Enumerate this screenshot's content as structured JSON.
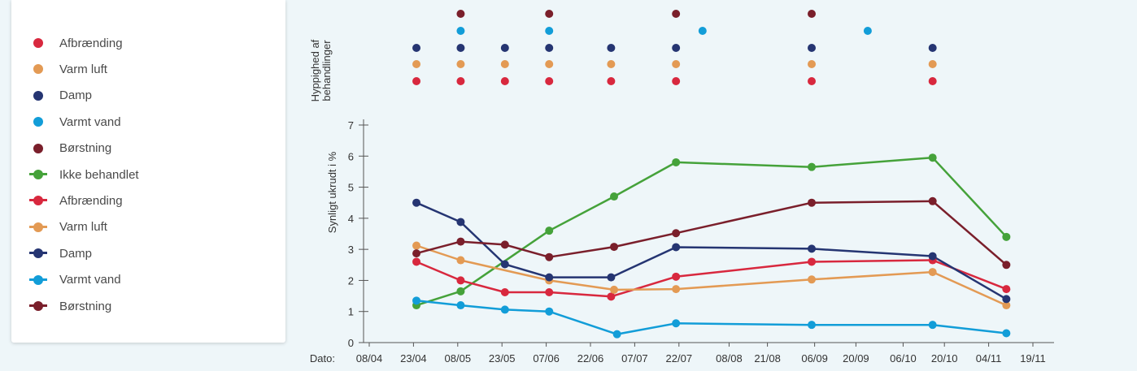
{
  "legend": [
    {
      "label": "Afbrænding",
      "kind": "dot",
      "color": "#d8283e"
    },
    {
      "label": "Varm luft",
      "kind": "dot",
      "color": "#e39a54"
    },
    {
      "label": "Damp",
      "kind": "dot",
      "color": "#253572"
    },
    {
      "label": "Varmt vand",
      "kind": "dot",
      "color": "#129dd8"
    },
    {
      "label": "Børstning",
      "kind": "dot",
      "color": "#7a1f2b"
    },
    {
      "label": "Ikke behandlet",
      "kind": "line",
      "color": "#45a23a"
    },
    {
      "label": "Afbrænding",
      "kind": "line",
      "color": "#d8283e"
    },
    {
      "label": "Varm luft",
      "kind": "line",
      "color": "#e39a54"
    },
    {
      "label": "Damp",
      "kind": "line",
      "color": "#253572"
    },
    {
      "label": "Varmt vand",
      "kind": "line",
      "color": "#129dd8"
    },
    {
      "label": "Børstning",
      "kind": "line",
      "color": "#7a1f2b"
    }
  ],
  "chart_data": {
    "type": "line",
    "ylabel": "Synligt ukrudt i %",
    "frequency_label": "Hyppighed af behandlinger",
    "xlabel": "Dato:",
    "x_ticks": [
      "08/04",
      "23/04",
      "08/05",
      "23/05",
      "07/06",
      "22/06",
      "07/07",
      "22/07",
      "08/08",
      "21/08",
      "06/09",
      "20/09",
      "06/10",
      "20/10",
      "04/11",
      "19/11"
    ],
    "x_tick_dates": [
      "2000-04-08",
      "2000-04-23",
      "2000-05-08",
      "2000-05-23",
      "2000-06-07",
      "2000-06-22",
      "2000-07-07",
      "2000-07-22",
      "2000-08-08",
      "2000-08-21",
      "2000-09-06",
      "2000-09-20",
      "2000-10-06",
      "2000-10-20",
      "2000-11-04",
      "2000-11-19"
    ],
    "y_ticks": [
      0,
      1,
      2,
      3,
      4,
      5,
      6,
      7
    ],
    "ylim": [
      0,
      7
    ],
    "series": [
      {
        "name": "Ikke behandlet",
        "color": "#45a23a",
        "points": [
          {
            "date": "2000-04-24",
            "y": 1.2
          },
          {
            "date": "2000-05-09",
            "y": 1.65
          },
          {
            "date": "2000-06-08",
            "y": 3.6
          },
          {
            "date": "2000-06-30",
            "y": 4.7
          },
          {
            "date": "2000-07-21",
            "y": 5.8
          },
          {
            "date": "2000-09-05",
            "y": 5.65
          },
          {
            "date": "2000-10-16",
            "y": 5.95
          },
          {
            "date": "2000-11-10",
            "y": 3.4
          }
        ]
      },
      {
        "name": "Afbrænding",
        "color": "#d8283e",
        "points": [
          {
            "date": "2000-04-24",
            "y": 2.6
          },
          {
            "date": "2000-05-09",
            "y": 2.0
          },
          {
            "date": "2000-05-24",
            "y": 1.62
          },
          {
            "date": "2000-06-08",
            "y": 1.62
          },
          {
            "date": "2000-06-29",
            "y": 1.48
          },
          {
            "date": "2000-07-21",
            "y": 2.12
          },
          {
            "date": "2000-09-05",
            "y": 2.6
          },
          {
            "date": "2000-10-16",
            "y": 2.65
          },
          {
            "date": "2000-11-10",
            "y": 1.72
          }
        ]
      },
      {
        "name": "Varm luft",
        "color": "#e39a54",
        "points": [
          {
            "date": "2000-04-24",
            "y": 3.12
          },
          {
            "date": "2000-05-09",
            "y": 2.65
          },
          {
            "date": "2000-06-08",
            "y": 2.0
          },
          {
            "date": "2000-06-30",
            "y": 1.7
          },
          {
            "date": "2000-07-21",
            "y": 1.72
          },
          {
            "date": "2000-09-05",
            "y": 2.03
          },
          {
            "date": "2000-10-16",
            "y": 2.27
          },
          {
            "date": "2000-11-10",
            "y": 1.2
          }
        ]
      },
      {
        "name": "Damp",
        "color": "#253572",
        "points": [
          {
            "date": "2000-04-24",
            "y": 4.5
          },
          {
            "date": "2000-05-09",
            "y": 3.88
          },
          {
            "date": "2000-05-24",
            "y": 2.52
          },
          {
            "date": "2000-06-08",
            "y": 2.1
          },
          {
            "date": "2000-06-29",
            "y": 2.1
          },
          {
            "date": "2000-07-21",
            "y": 3.07
          },
          {
            "date": "2000-09-05",
            "y": 3.02
          },
          {
            "date": "2000-10-16",
            "y": 2.78
          },
          {
            "date": "2000-11-10",
            "y": 1.4
          }
        ]
      },
      {
        "name": "Varmt vand",
        "color": "#129dd8",
        "points": [
          {
            "date": "2000-04-24",
            "y": 1.35
          },
          {
            "date": "2000-05-09",
            "y": 1.2
          },
          {
            "date": "2000-05-24",
            "y": 1.06
          },
          {
            "date": "2000-06-08",
            "y": 1.0
          },
          {
            "date": "2000-07-01",
            "y": 0.27
          },
          {
            "date": "2000-07-21",
            "y": 0.62
          },
          {
            "date": "2000-09-05",
            "y": 0.57
          },
          {
            "date": "2000-10-16",
            "y": 0.57
          },
          {
            "date": "2000-11-10",
            "y": 0.3
          }
        ]
      },
      {
        "name": "Børstning",
        "color": "#7a1f2b",
        "points": [
          {
            "date": "2000-04-24",
            "y": 2.87
          },
          {
            "date": "2000-05-09",
            "y": 3.25
          },
          {
            "date": "2000-05-24",
            "y": 3.15
          },
          {
            "date": "2000-06-08",
            "y": 2.75
          },
          {
            "date": "2000-06-30",
            "y": 3.08
          },
          {
            "date": "2000-07-21",
            "y": 3.52
          },
          {
            "date": "2000-09-05",
            "y": 4.5
          },
          {
            "date": "2000-10-16",
            "y": 4.55
          },
          {
            "date": "2000-11-10",
            "y": 2.5
          }
        ]
      }
    ],
    "treatment_frequency": [
      {
        "name": "Børstning",
        "color": "#7a1f2b",
        "dates": [
          "2000-05-09",
          "2000-06-08",
          "2000-07-21",
          "2000-09-05"
        ]
      },
      {
        "name": "Varmt vand",
        "color": "#129dd8",
        "dates": [
          "2000-05-09",
          "2000-06-08",
          "2000-07-30",
          "2000-09-24"
        ]
      },
      {
        "name": "Damp",
        "color": "#253572",
        "dates": [
          "2000-04-24",
          "2000-05-09",
          "2000-05-24",
          "2000-06-08",
          "2000-06-29",
          "2000-07-21",
          "2000-09-05",
          "2000-10-16"
        ]
      },
      {
        "name": "Varm luft",
        "color": "#e39a54",
        "dates": [
          "2000-04-24",
          "2000-05-09",
          "2000-05-24",
          "2000-06-08",
          "2000-06-29",
          "2000-07-21",
          "2000-09-05",
          "2000-10-16"
        ]
      },
      {
        "name": "Afbrænding",
        "color": "#d8283e",
        "dates": [
          "2000-04-24",
          "2000-05-09",
          "2000-05-24",
          "2000-06-08",
          "2000-06-29",
          "2000-07-21",
          "2000-09-05",
          "2000-10-16"
        ]
      }
    ]
  }
}
